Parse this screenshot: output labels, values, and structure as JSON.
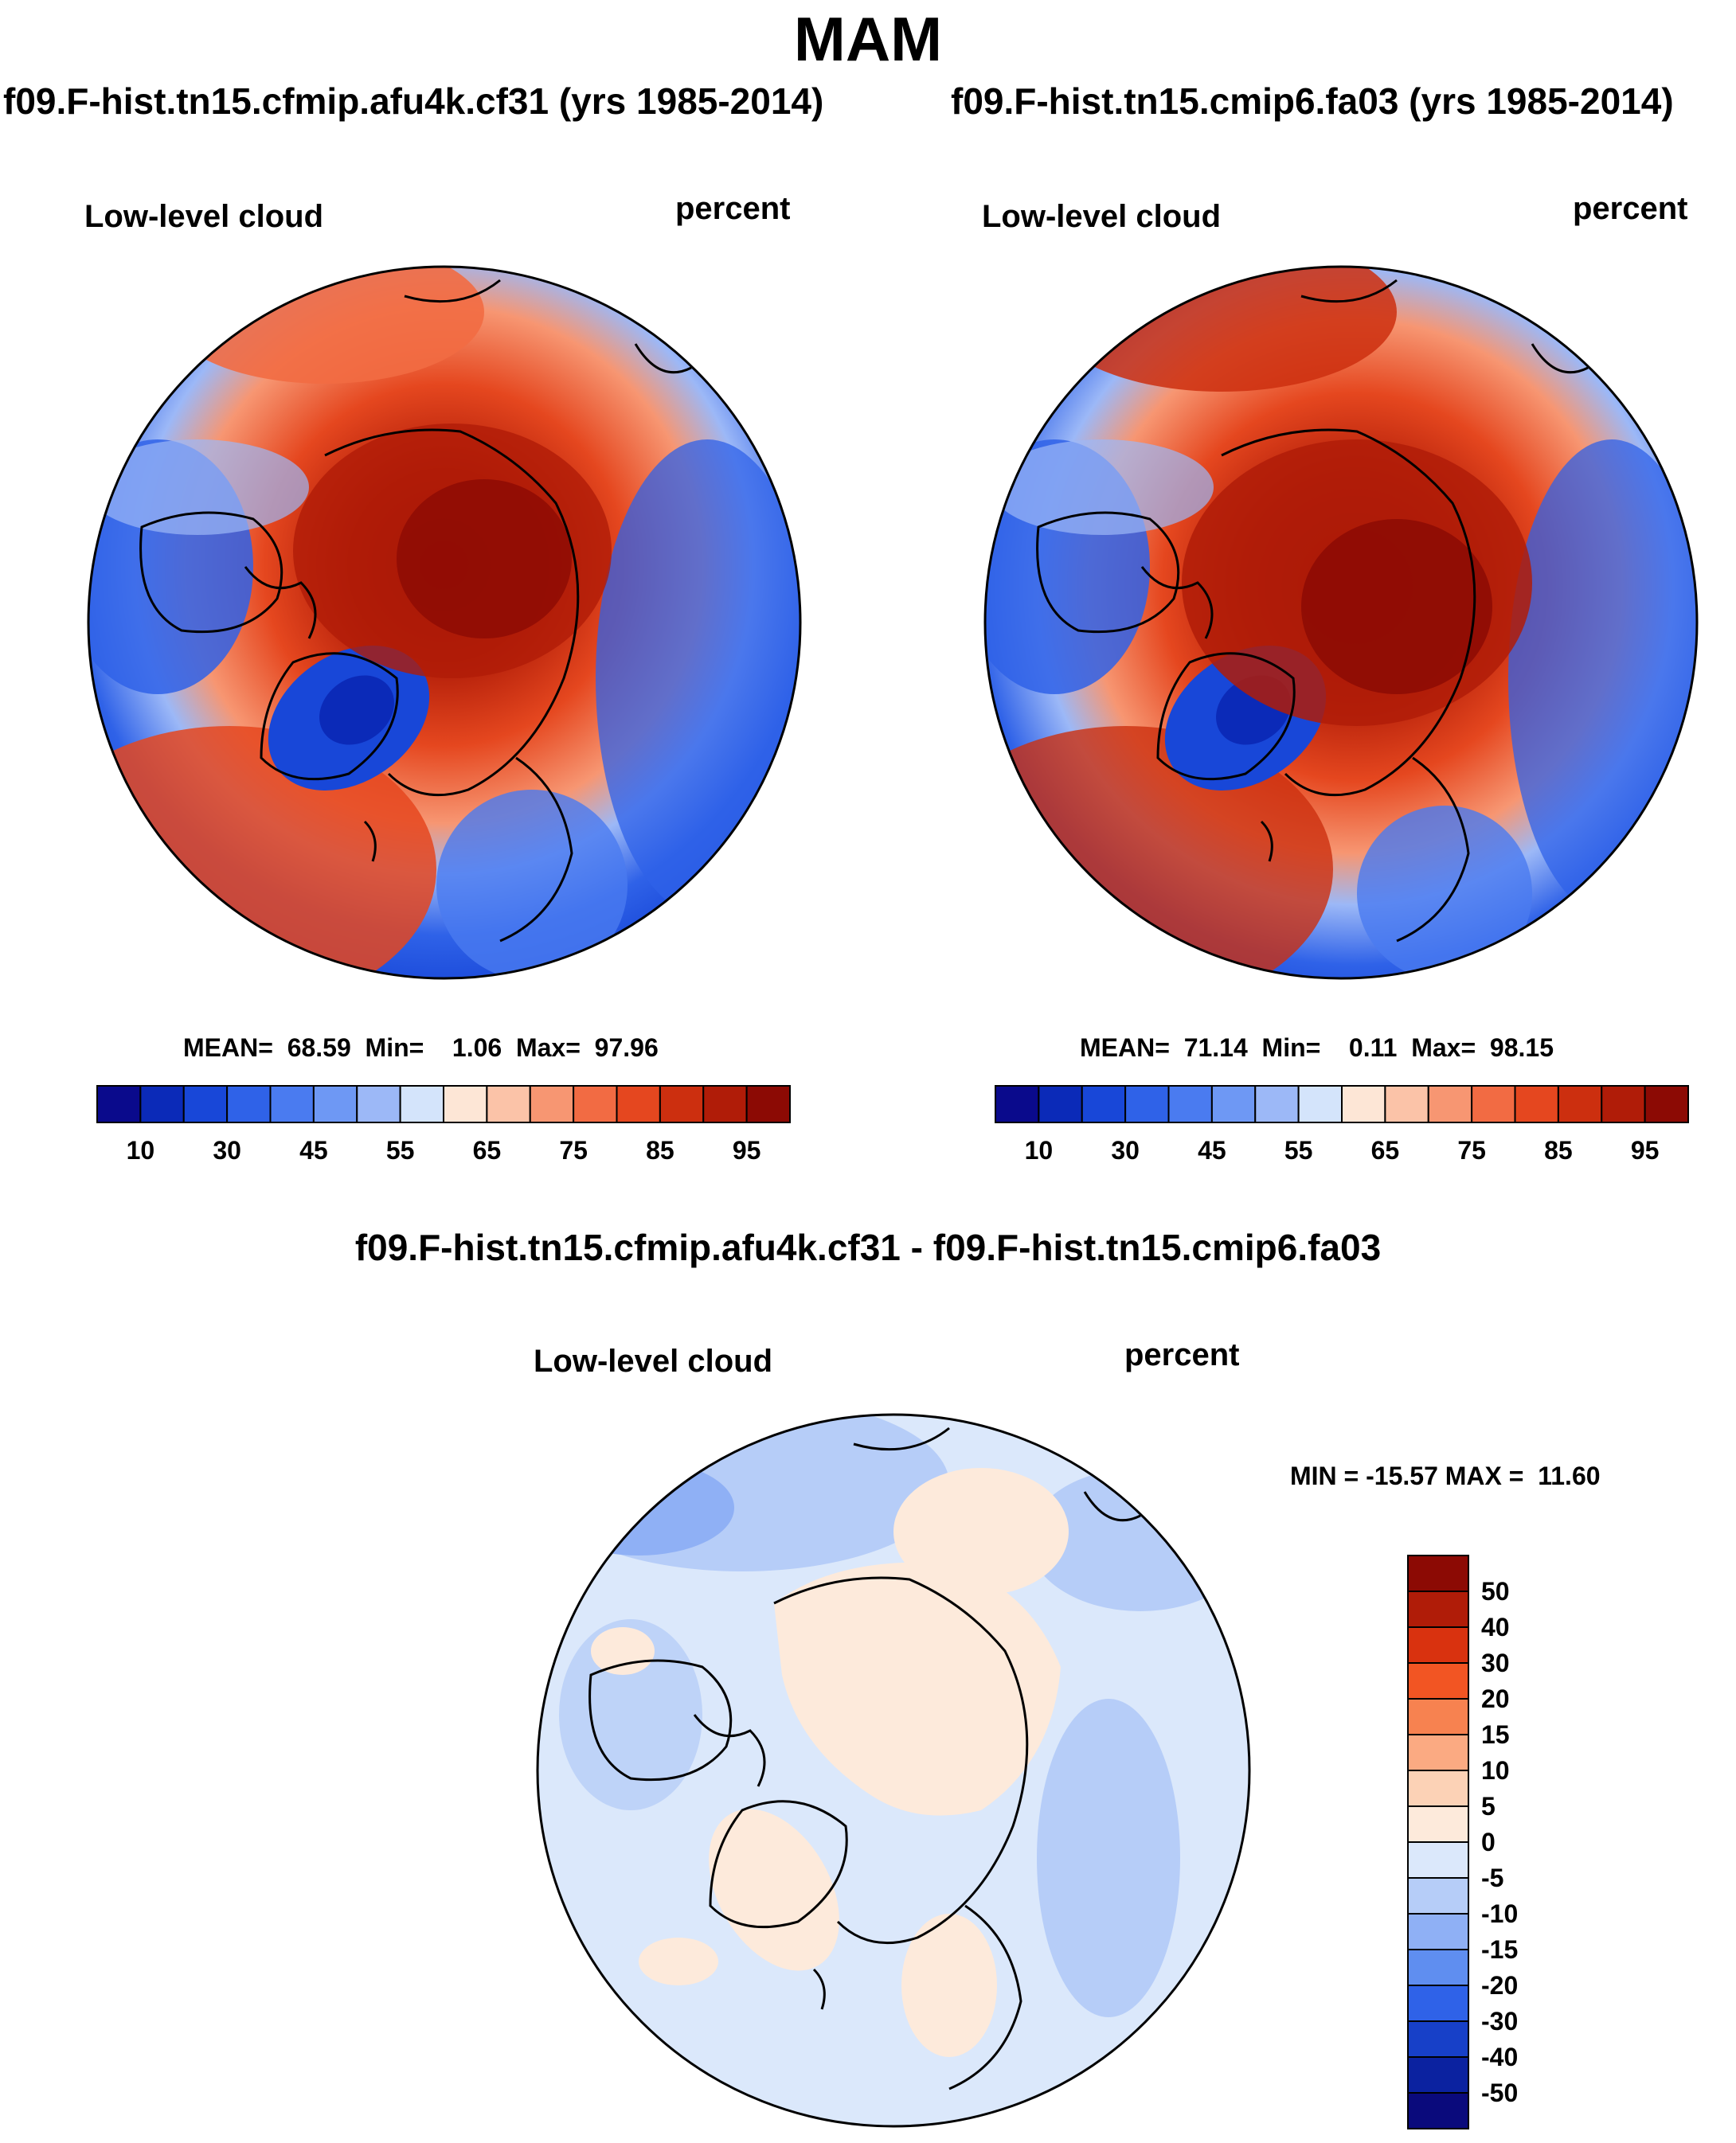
{
  "figure": {
    "title": "MAM",
    "difference_title": "f09.F-hist.tn15.cfmip.afu4k.cf31 - f09.F-hist.tn15.cmip6.fa03"
  },
  "panels": [
    {
      "title": "f09.F-hist.tn15.cfmip.afu4k.cf31 (yrs 1985-2014)",
      "variable": "Low-level cloud",
      "units": "percent",
      "stats": "MEAN=  68.59  Min=    1.06  Max=  97.96"
    },
    {
      "title": "f09.F-hist.tn15.cmip6.fa03 (yrs 1985-2014)",
      "variable": "Low-level cloud",
      "units": "percent",
      "stats": "MEAN=  71.14  Min=    0.11  Max=  98.15"
    },
    {
      "variable": "Low-level cloud",
      "units": "percent",
      "stats": "MIN = -15.57 MAX =  11.60"
    }
  ],
  "chart_data": [
    {
      "type": "heatmap",
      "projection": "north polar stereographic",
      "title": "f09.F-hist.tn15.cfmip.afu4k.cf31 (yrs 1985-2014)",
      "variable": "Low-level cloud",
      "units": "percent",
      "mean": 68.59,
      "min": 1.06,
      "max": 97.96,
      "colorbar": {
        "orientation": "horizontal",
        "levels": [
          5,
          10,
          20,
          30,
          40,
          45,
          50,
          55,
          60,
          65,
          70,
          75,
          80,
          85,
          90,
          95
        ],
        "tick_labels": [
          "10",
          "30",
          "45",
          "55",
          "65",
          "75",
          "85",
          "95"
        ],
        "colors": [
          "#0a0a8c",
          "#0b2ab8",
          "#1847d8",
          "#2f62e8",
          "#4a7bf0",
          "#6e98f4",
          "#9cb8f7",
          "#d4e4fb",
          "#fde6d6",
          "#fbc3a8",
          "#f79672",
          "#f26b43",
          "#e5471f",
          "#cc2f0f",
          "#b01c08",
          "#8c0a04"
        ]
      }
    },
    {
      "type": "heatmap",
      "projection": "north polar stereographic",
      "title": "f09.F-hist.tn15.cmip6.fa03 (yrs 1985-2014)",
      "variable": "Low-level cloud",
      "units": "percent",
      "mean": 71.14,
      "min": 0.11,
      "max": 98.15,
      "colorbar": {
        "orientation": "horizontal",
        "levels": [
          5,
          10,
          20,
          30,
          40,
          45,
          50,
          55,
          60,
          65,
          70,
          75,
          80,
          85,
          90,
          95
        ],
        "tick_labels": [
          "10",
          "30",
          "45",
          "55",
          "65",
          "75",
          "85",
          "95"
        ],
        "colors": [
          "#0a0a8c",
          "#0b2ab8",
          "#1847d8",
          "#2f62e8",
          "#4a7bf0",
          "#6e98f4",
          "#9cb8f7",
          "#d4e4fb",
          "#fde6d6",
          "#fbc3a8",
          "#f79672",
          "#f26b43",
          "#e5471f",
          "#cc2f0f",
          "#b01c08",
          "#8c0a04"
        ]
      }
    },
    {
      "type": "heatmap",
      "projection": "north polar stereographic",
      "title": "f09.F-hist.tn15.cfmip.afu4k.cf31 - f09.F-hist.tn15.cmip6.fa03",
      "variable": "Low-level cloud",
      "units": "percent",
      "min": -15.57,
      "max": 11.6,
      "colorbar": {
        "orientation": "vertical",
        "levels_top_to_bottom": [
          50,
          40,
          30,
          20,
          15,
          10,
          5,
          0,
          -5,
          -10,
          -15,
          -20,
          -30,
          -40,
          -50
        ],
        "tick_labels_top_to_bottom": [
          "50",
          "40",
          "30",
          "20",
          "15",
          "10",
          "5",
          "0",
          "-5",
          "-10",
          "-15",
          "-20",
          "-30",
          "-40",
          "-50"
        ],
        "colors_top_to_bottom": [
          "#8c0a04",
          "#b01c08",
          "#d9320f",
          "#f25523",
          "#f78250",
          "#fbaa82",
          "#fcd2b6",
          "#fdeadb",
          "#dbe8fb",
          "#b6cdf8",
          "#8fb0f5",
          "#5f8ef0",
          "#2f62e8",
          "#1740c8",
          "#0b22a0",
          "#0a0a7c"
        ]
      }
    }
  ]
}
